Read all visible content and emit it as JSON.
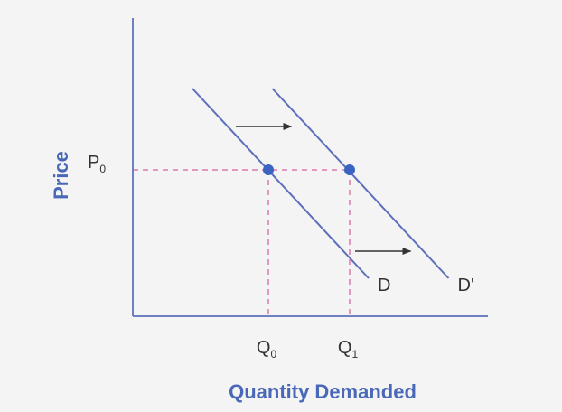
{
  "chart_data": {
    "type": "line",
    "title": "",
    "xlabel": "Quantity Demanded",
    "ylabel": "Price",
    "axis_color": "#6e7fc4",
    "curve_color": "#5d6fbb",
    "point_color": "#3b63c2",
    "guide_color": "#d97ab0",
    "label_color": "#4a68b8",
    "arrow_color": "#333333",
    "background": "#f4f4f4",
    "grid": false,
    "series": [
      {
        "name": "D",
        "x": [
          0.44,
          1.74
        ],
        "y": [
          0.84,
          0.14
        ]
      },
      {
        "name": "D'",
        "x": [
          1.03,
          2.33
        ],
        "y": [
          0.84,
          0.14
        ]
      }
    ],
    "points": [
      {
        "x": 1.0,
        "y": 0.54
      },
      {
        "x": 1.6,
        "y": 0.54
      }
    ],
    "guides": {
      "p0": 0.54,
      "q0": 1.0,
      "q1": 1.6
    },
    "shift_arrows": [
      {
        "x_from": 0.76,
        "x_to": 1.17,
        "y": 0.7
      },
      {
        "x_from": 1.64,
        "x_to": 2.05,
        "y": 0.24
      }
    ],
    "x_ticks": [
      {
        "x": 1.0,
        "base": "Q",
        "sub": "0"
      },
      {
        "x": 1.6,
        "base": "Q",
        "sub": "1"
      }
    ],
    "y_ticks": [
      {
        "y": 0.54,
        "base": "P",
        "sub": "0"
      }
    ]
  }
}
